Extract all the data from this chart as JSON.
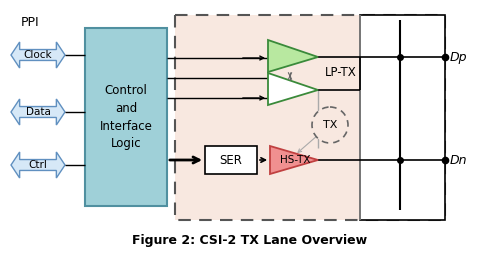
{
  "title": "Figure 2: CSI-2 TX Lane Overview",
  "bg_color": "#ffffff",
  "ppi_label": "PPI",
  "arrow_labels": [
    "Clock",
    "Data",
    "Ctrl"
  ],
  "arrow_fill": "#d6e8f7",
  "arrow_edge": "#6090c0",
  "control_box_color": "#9fd0d8",
  "control_label": "Control\nand\nInterface\nLogic",
  "dashed_box_color": "#f8e8e0",
  "lp_tx_label": "LP-TX",
  "hs_tx_label": "HS-TX",
  "ser_label": "SER",
  "tx_label": "TX",
  "dp_label": "Dp",
  "dn_label": "Dn",
  "lp_tri_color_fill": "#b8e8a0",
  "lp_tri_color_fill2": "#ffffff",
  "lp_tri_color_edge": "#3a8a3a",
  "hs_tri_color_fill": "#f09090",
  "hs_tri_color_edge": "#c04040",
  "ser_box_color": "#ffffff",
  "tx_circle_color": "#f8e8e0"
}
